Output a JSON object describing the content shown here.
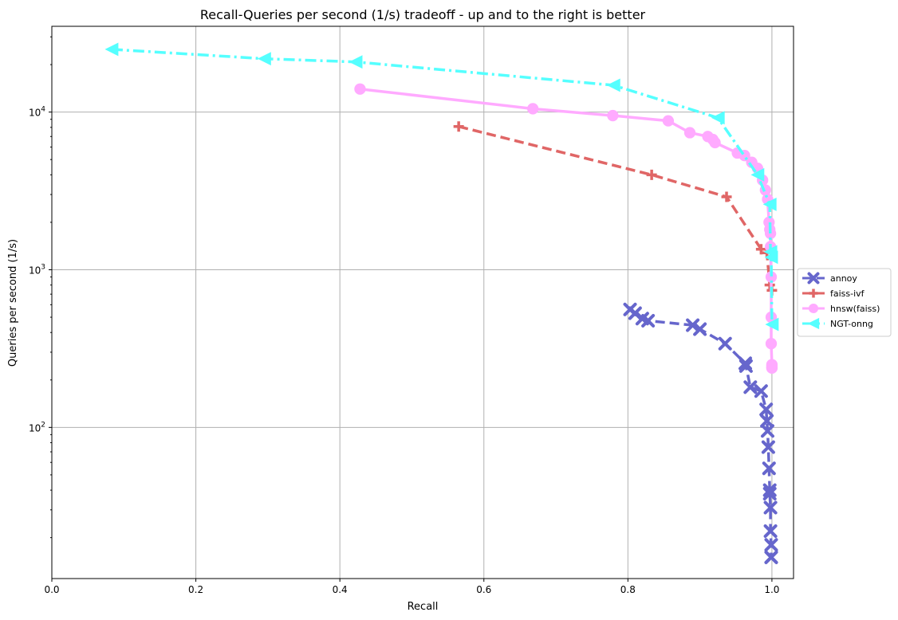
{
  "chart_data": {
    "type": "line",
    "title": "Recall-Queries per second (1/s) tradeoff - up and to the right is better",
    "xlabel": "Recall",
    "ylabel": "Queries per second (1/s)",
    "xlim": [
      0.0,
      1.03
    ],
    "ylim": [
      11,
      35000
    ],
    "yscale": "log",
    "grid": true,
    "legend_position": "right",
    "x_ticks": [
      0.0,
      0.2,
      0.4,
      0.6,
      0.8,
      1.0
    ],
    "x_tick_labels": [
      "0.0",
      "0.2",
      "0.4",
      "0.6",
      "0.8",
      "1.0"
    ],
    "y_ticks": [
      100,
      1000,
      10000
    ],
    "y_tick_base": "10",
    "y_tick_exponents": [
      "2",
      "3",
      "4"
    ],
    "series": [
      {
        "name": "annoy",
        "color": "#6666cc",
        "linestyle": "dashed",
        "marker": "x",
        "x": [
          0.803,
          0.81,
          0.82,
          0.828,
          0.89,
          0.9,
          0.935,
          0.963,
          0.964,
          0.97,
          0.985,
          0.992,
          0.993,
          0.994,
          0.995,
          0.996,
          0.997,
          0.997,
          0.998,
          0.998,
          0.999,
          0.999,
          0.999
        ],
        "y": [
          560,
          530,
          490,
          475,
          445,
          420,
          340,
          255,
          245,
          180,
          170,
          130,
          110,
          95,
          75,
          55,
          40,
          38,
          31,
          22,
          18,
          15,
          15
        ]
      },
      {
        "name": "faiss-ivf",
        "color": "#e06666",
        "linestyle": "dashed",
        "marker": "plus",
        "x": [
          0.565,
          0.833,
          0.937,
          0.985,
          0.993,
          0.997,
          1.0
        ],
        "y": [
          8100,
          4000,
          2900,
          1350,
          1280,
          800,
          740
        ]
      },
      {
        "name": "hnsw(faiss)",
        "color": "#ffaaff",
        "linestyle": "solid",
        "marker": "circle",
        "x": [
          0.428,
          0.668,
          0.779,
          0.856,
          0.886,
          0.911,
          0.918,
          0.921,
          0.952,
          0.962,
          0.972,
          0.98,
          0.987,
          0.991,
          0.994,
          0.996,
          0.997,
          0.998,
          0.998,
          0.999,
          0.999,
          0.999,
          1.0,
          1.0,
          1.0,
          1.0
        ],
        "y": [
          14000,
          10500,
          9500,
          8800,
          7400,
          7000,
          6700,
          6400,
          5500,
          5300,
          4800,
          4400,
          3700,
          3200,
          2800,
          2000,
          1800,
          1700,
          1400,
          900,
          500,
          340,
          250,
          245,
          240,
          238
        ]
      },
      {
        "name": "NGT-onng",
        "color": "#55ffff",
        "linestyle": "dashdot",
        "marker": "triangle-left",
        "x": [
          0.083,
          0.295,
          0.422,
          0.78,
          0.925,
          0.98,
          0.997,
          0.998,
          0.999,
          1.0
        ],
        "y": [
          25000,
          21800,
          20800,
          14800,
          9200,
          4000,
          2600,
          1300,
          1200,
          450
        ]
      }
    ]
  }
}
